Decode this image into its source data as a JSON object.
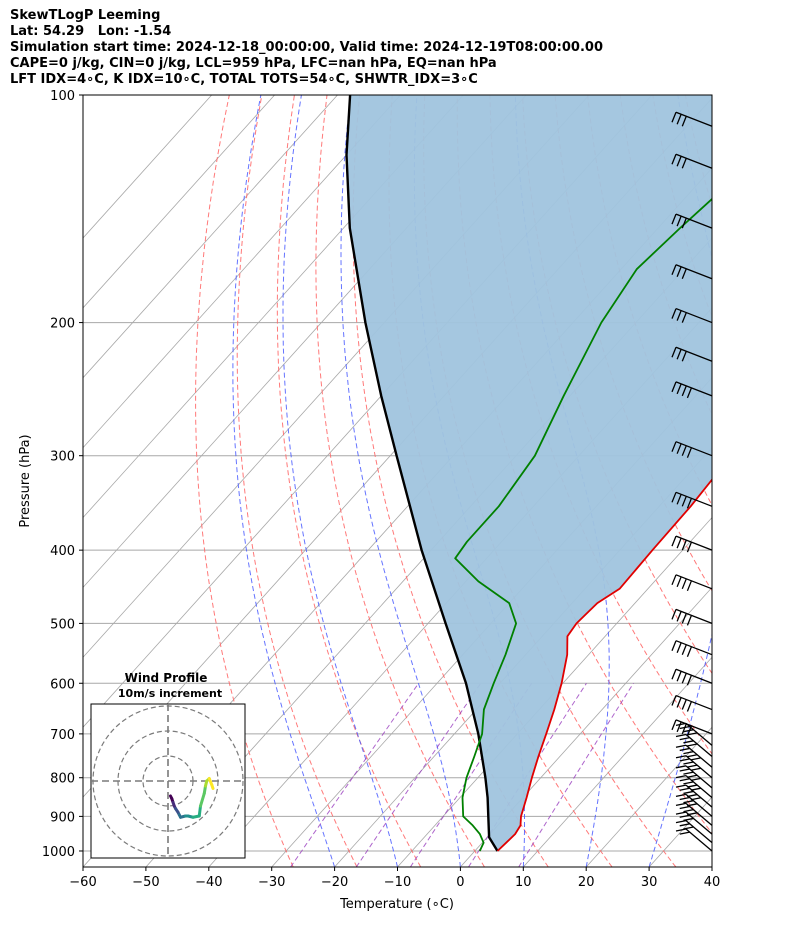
{
  "header": {
    "title": "SkewTLogP Leeming",
    "location": "Lat: 54.29   Lon: -1.54",
    "times": "Simulation start time: 2024-12-18_00:00:00, Valid time: 2024-12-19T08:00:00.00",
    "params": "CAPE=0 j/kg, CIN=0 j/kg, LCL=959 hPa, LFC=nan hPa, EQ=nan hPa",
    "indices": "LFT IDX=4∘C, K IDX=10∘C, TOTAL TOTS=54∘C, SHWTR_IDX=3∘C"
  },
  "chart_data": [
    {
      "type": "line",
      "chart_kind": "skew-T log-p diagram",
      "xlabel": "Temperature (∘C)",
      "ylabel": "Pressure (hPa)",
      "xlim": [
        -60,
        40
      ],
      "ylim": [
        1050,
        100
      ],
      "y_scale": "log",
      "x_ticks": [
        "−60",
        "−50",
        "−40",
        "−30",
        "−20",
        "−10",
        "0",
        "10",
        "20",
        "30",
        "40"
      ],
      "y_ticks": [
        "100",
        "200",
        "300",
        "400",
        "500",
        "600",
        "700",
        "800",
        "900",
        "1000"
      ],
      "grid": true,
      "colors": {
        "temperature": "#e00000",
        "dewpoint": "#008000",
        "parcel": "#000000",
        "shade": "#a0c4de",
        "dry_adiabat": "#ff6a6a",
        "moist_adiabat": "#4a5cff",
        "mixing_ratio": "#9a3fbf",
        "isotherm": "#a8a8a8"
      },
      "series": [],
      "temperature_profile": [
        {
          "p": 1000,
          "t": 3.6
        },
        {
          "p": 975,
          "t": 3.8
        },
        {
          "p": 950,
          "t": 4.0
        },
        {
          "p": 925,
          "t": 3.6
        },
        {
          "p": 900,
          "t": 2.4
        },
        {
          "p": 850,
          "t": 0.6
        },
        {
          "p": 800,
          "t": -1.4
        },
        {
          "p": 750,
          "t": -3.4
        },
        {
          "p": 700,
          "t": -5.4
        },
        {
          "p": 650,
          "t": -7.6
        },
        {
          "p": 600,
          "t": -10.2
        },
        {
          "p": 550,
          "t": -13.4
        },
        {
          "p": 520,
          "t": -16.0
        },
        {
          "p": 500,
          "t": -16.4
        },
        {
          "p": 470,
          "t": -16.0
        },
        {
          "p": 450,
          "t": -14.5
        },
        {
          "p": 400,
          "t": -14.8
        },
        {
          "p": 350,
          "t": -15.0
        },
        {
          "p": 300,
          "t": -15.8
        },
        {
          "p": 270,
          "t": -14.5
        },
        {
          "p": 250,
          "t": -13.0
        },
        {
          "p": 200,
          "t": -11.3
        },
        {
          "p": 175,
          "t": -11.2
        },
        {
          "p": 150,
          "t": -12.4
        },
        {
          "p": 125,
          "t": -13.5
        },
        {
          "p": 110,
          "t": -12.8
        },
        {
          "p": 100,
          "t": -13.2
        }
      ],
      "dewpoint_profile": [
        {
          "p": 1000,
          "t": 0.8
        },
        {
          "p": 975,
          "t": 0.2
        },
        {
          "p": 950,
          "t": -1.6
        },
        {
          "p": 925,
          "t": -4.0
        },
        {
          "p": 900,
          "t": -6.8
        },
        {
          "p": 850,
          "t": -9.6
        },
        {
          "p": 800,
          "t": -11.8
        },
        {
          "p": 750,
          "t": -13.6
        },
        {
          "p": 700,
          "t": -15.6
        },
        {
          "p": 650,
          "t": -18.8
        },
        {
          "p": 600,
          "t": -21.0
        },
        {
          "p": 550,
          "t": -23.2
        },
        {
          "p": 500,
          "t": -26.0
        },
        {
          "p": 470,
          "t": -30.0
        },
        {
          "p": 440,
          "t": -38.0
        },
        {
          "p": 410,
          "t": -45.0
        },
        {
          "p": 390,
          "t": -45.5
        },
        {
          "p": 350,
          "t": -45.5
        },
        {
          "p": 300,
          "t": -47.0
        },
        {
          "p": 250,
          "t": -51.0
        },
        {
          "p": 200,
          "t": -55.5
        },
        {
          "p": 170,
          "t": -57.5
        },
        {
          "p": 150,
          "t": -56.5
        },
        {
          "p": 130,
          "t": -55.0
        },
        {
          "p": 115,
          "t": -54.0
        },
        {
          "p": 100,
          "t": -53.0
        }
      ],
      "parcel_profile": [
        {
          "p": 1000,
          "t": 3.6
        },
        {
          "p": 959,
          "t": 0.3
        },
        {
          "p": 900,
          "t": -2.8
        },
        {
          "p": 850,
          "t": -5.6
        },
        {
          "p": 800,
          "t": -8.8
        },
        {
          "p": 700,
          "t": -16.2
        },
        {
          "p": 600,
          "t": -25.4
        },
        {
          "p": 500,
          "t": -37.2
        },
        {
          "p": 400,
          "t": -51.5
        },
        {
          "p": 300,
          "t": -69.0
        },
        {
          "p": 250,
          "t": -80.0
        },
        {
          "p": 200,
          "t": -93.0
        },
        {
          "p": 150,
          "t": -109.0
        },
        {
          "p": 120,
          "t": -120.0
        },
        {
          "p": 100,
          "t": -128.0
        }
      ],
      "wind_barbs": [
        {
          "p": 1000,
          "speed_kt": 20
        },
        {
          "p": 975,
          "speed_kt": 25
        },
        {
          "p": 950,
          "speed_kt": 30
        },
        {
          "p": 925,
          "speed_kt": 35
        },
        {
          "p": 900,
          "speed_kt": 40
        },
        {
          "p": 875,
          "speed_kt": 45
        },
        {
          "p": 850,
          "speed_kt": 45
        },
        {
          "p": 825,
          "speed_kt": 45
        },
        {
          "p": 800,
          "speed_kt": 45
        },
        {
          "p": 775,
          "speed_kt": 45
        },
        {
          "p": 750,
          "speed_kt": 40
        },
        {
          "p": 725,
          "speed_kt": 40
        },
        {
          "p": 700,
          "speed_kt": 40
        },
        {
          "p": 650,
          "speed_kt": 40
        },
        {
          "p": 600,
          "speed_kt": 40
        },
        {
          "p": 550,
          "speed_kt": 40
        },
        {
          "p": 500,
          "speed_kt": 40
        },
        {
          "p": 450,
          "speed_kt": 40
        },
        {
          "p": 400,
          "speed_kt": 40
        },
        {
          "p": 350,
          "speed_kt": 40
        },
        {
          "p": 300,
          "speed_kt": 35
        },
        {
          "p": 250,
          "speed_kt": 35
        },
        {
          "p": 225,
          "speed_kt": 30
        },
        {
          "p": 200,
          "speed_kt": 30
        },
        {
          "p": 175,
          "speed_kt": 30
        },
        {
          "p": 150,
          "speed_kt": 30
        },
        {
          "p": 125,
          "speed_kt": 30
        },
        {
          "p": 110,
          "speed_kt": 30
        }
      ]
    },
    {
      "type": "scatter",
      "chart_kind": "hodograph",
      "title": "Wind Profile",
      "subtitle": "10m/s increment",
      "rings_ms": [
        10,
        20,
        30
      ],
      "u_ms": [
        1.0,
        1.5,
        2.0,
        2.5,
        3.0,
        4.0,
        4.5,
        5.0,
        7.0,
        8.0,
        10.0,
        12.5,
        13.0,
        14.5,
        15.0,
        15.5,
        16.5,
        17.5,
        18.0
      ],
      "v_ms": [
        -6.0,
        -7.0,
        -8.5,
        -10.0,
        -11.0,
        -12.5,
        -13.5,
        -14.5,
        -14.0,
        -14.0,
        -14.5,
        -14.0,
        -10.0,
        -5.0,
        -2.0,
        0.0,
        1.0,
        -1.5,
        -3.0
      ]
    }
  ]
}
